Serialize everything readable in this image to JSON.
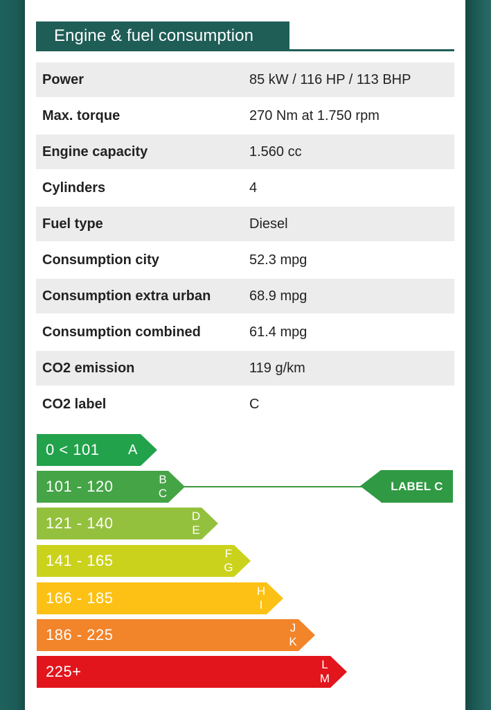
{
  "section_title": "Engine & fuel consumption",
  "specs": [
    {
      "label": "Power",
      "value": "85 kW / 116 HP / 113 BHP"
    },
    {
      "label": "Max. torque",
      "value": "270 Nm at 1.750 rpm"
    },
    {
      "label": "Engine capacity",
      "value": "1.560 cc"
    },
    {
      "label": "Cylinders",
      "value": "4"
    },
    {
      "label": "Fuel type",
      "value": "Diesel"
    },
    {
      "label": "Consumption city",
      "value": "52.3 mpg"
    },
    {
      "label": "Consumption extra urban",
      "value": "68.9 mpg"
    },
    {
      "label": "Consumption combined",
      "value": "61.4 mpg"
    },
    {
      "label": "CO2 emission",
      "value": "119 g/km"
    },
    {
      "label": "CO2 label",
      "value": "C"
    }
  ],
  "co2_scale": [
    {
      "range": "0 < 101",
      "letters": [
        "A"
      ],
      "color": "#22a24b"
    },
    {
      "range": "101 - 120",
      "letters": [
        "B",
        "C"
      ],
      "color": "#44a446"
    },
    {
      "range": "121 - 140",
      "letters": [
        "D",
        "E"
      ],
      "color": "#94c13d"
    },
    {
      "range": "141 - 165",
      "letters": [
        "F",
        "G"
      ],
      "color": "#cbd21c"
    },
    {
      "range": "166 - 185",
      "letters": [
        "H",
        "I"
      ],
      "color": "#fcc114"
    },
    {
      "range": "186 - 225",
      "letters": [
        "J",
        "K"
      ],
      "color": "#f2842a"
    },
    {
      "range": "225+",
      "letters": [
        "L",
        "M"
      ],
      "color": "#e2151c"
    }
  ],
  "current_label": {
    "text": "LABEL C",
    "color": "#2f9a43"
  }
}
